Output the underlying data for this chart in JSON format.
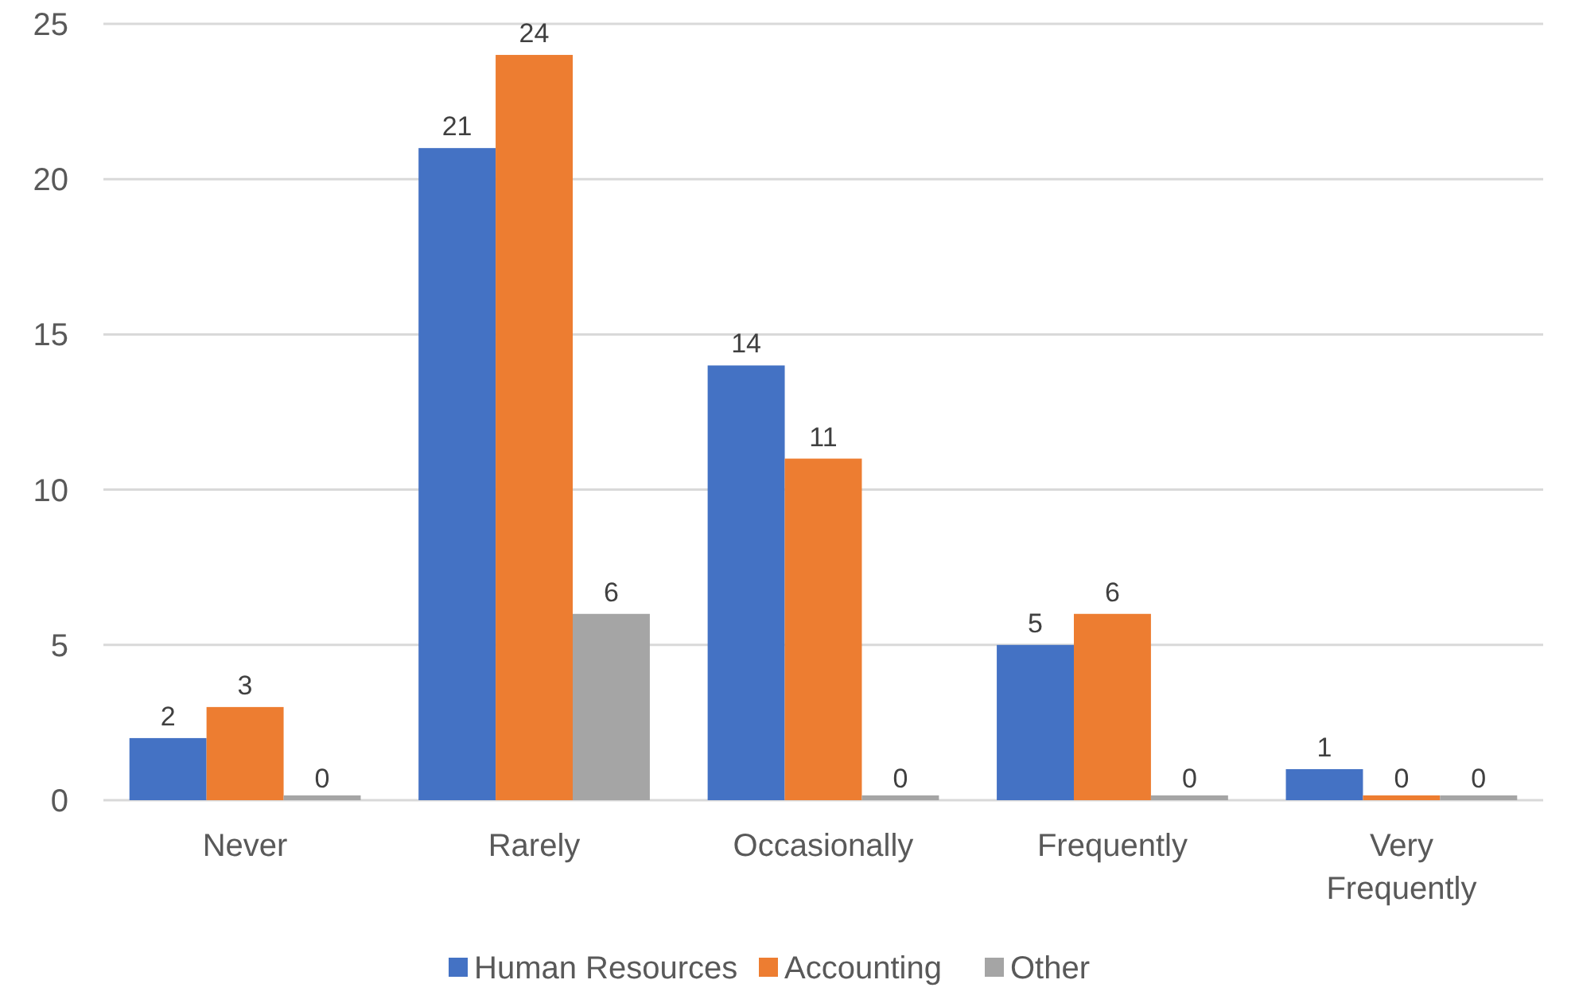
{
  "chart_data": {
    "type": "bar",
    "categories": [
      "Never",
      "Rarely",
      "Occasionally",
      "Frequently",
      "Very Frequently"
    ],
    "series": [
      {
        "name": "Human Resources",
        "color": "#4472c4",
        "values": [
          2,
          21,
          14,
          5,
          1
        ]
      },
      {
        "name": "Accounting",
        "color": "#ed7d31",
        "values": [
          3,
          24,
          11,
          6,
          0
        ]
      },
      {
        "name": "Other",
        "color": "#a5a5a5",
        "values": [
          0,
          6,
          0,
          0,
          0
        ]
      }
    ],
    "ylim": [
      0,
      25
    ],
    "yticks": [
      0,
      5,
      10,
      15,
      20,
      25
    ],
    "grid": "y",
    "legend": "bottom",
    "data_labels": true
  }
}
